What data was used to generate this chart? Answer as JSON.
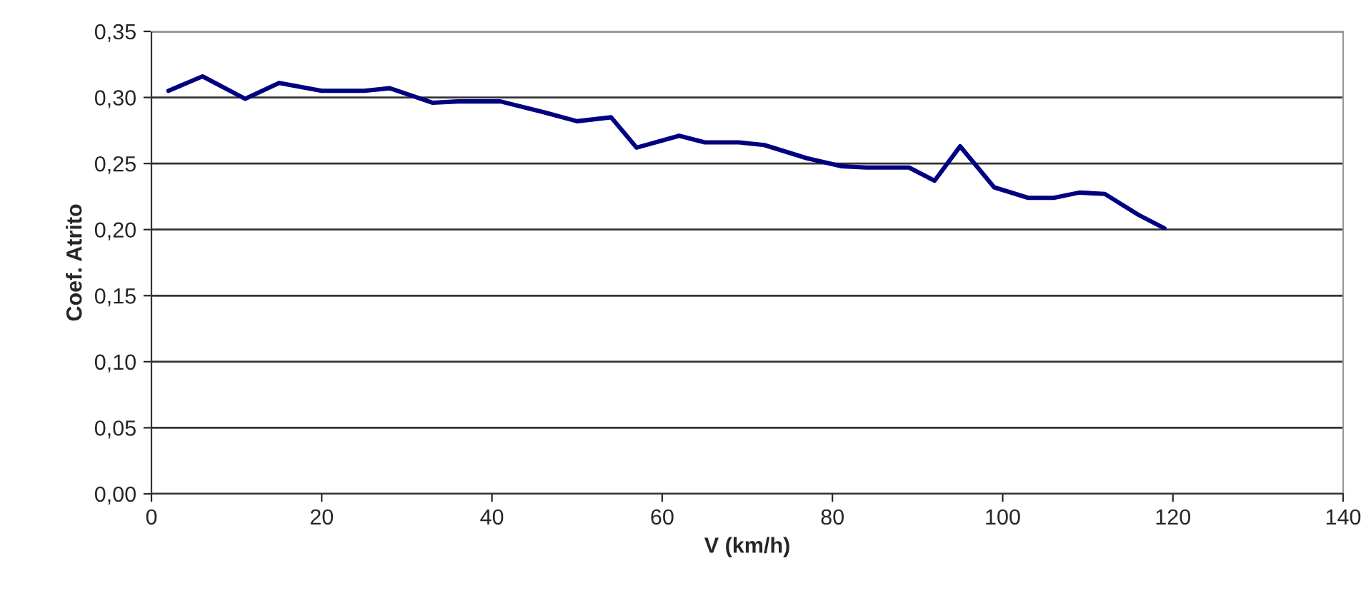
{
  "chart_data": {
    "type": "line",
    "xlabel": "V (km/h)",
    "ylabel": "Coef. Atrito",
    "x": [
      2,
      6,
      11,
      15,
      20,
      25,
      28,
      33,
      36,
      41,
      46,
      50,
      54,
      57,
      62,
      65,
      69,
      72,
      77,
      81,
      84,
      89,
      92,
      95,
      99,
      103,
      106,
      109,
      112,
      116,
      119
    ],
    "series": [
      {
        "color": "#000080",
        "values": [
          0.305,
          0.316,
          0.299,
          0.311,
          0.305,
          0.305,
          0.307,
          0.296,
          0.297,
          0.297,
          0.289,
          0.282,
          0.285,
          0.262,
          0.271,
          0.266,
          0.266,
          0.264,
          0.254,
          0.248,
          0.247,
          0.247,
          0.237,
          0.263,
          0.232,
          0.224,
          0.224,
          0.228,
          0.227,
          0.211,
          0.201
        ]
      }
    ],
    "xlim": [
      0,
      140
    ],
    "xticks": [
      0,
      20,
      40,
      60,
      80,
      100,
      120,
      140
    ],
    "ylim": [
      0,
      0.35
    ],
    "yticks": [
      {
        "value": 0,
        "label": "0,00"
      },
      {
        "value": 0.05,
        "label": "0,05"
      },
      {
        "value": 0.1,
        "label": "0,10"
      },
      {
        "value": 0.15,
        "label": "0,15"
      },
      {
        "value": 0.2,
        "label": "0,20"
      },
      {
        "value": 0.25,
        "label": "0,25"
      },
      {
        "value": 0.3,
        "label": "0,30"
      },
      {
        "value": 0.35,
        "label": "0,35"
      }
    ],
    "grid": "y",
    "marker": "none",
    "line_style": "solid"
  }
}
